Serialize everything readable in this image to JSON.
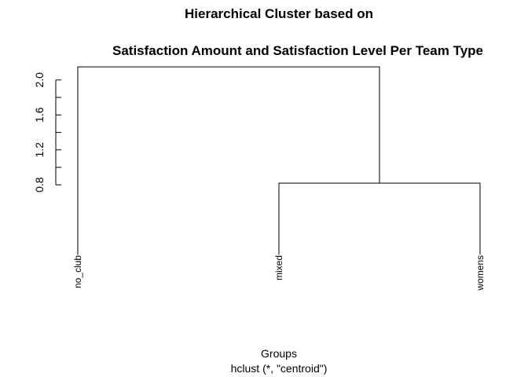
{
  "chart_data": {
    "type": "dendrogram",
    "title_line1": "Hierarchical Cluster based on",
    "title_line2": "Satisfaction Amount and Satisfaction Level Per Team Type",
    "xlabel": "Groups",
    "sublabel": "hclust (*, \"centroid\")",
    "ylim": [
      -0.15,
      2.16
    ],
    "yticks": [
      0.8,
      1.2,
      1.6,
      2.0
    ],
    "ytick_labels": [
      "0.8",
      "1.2",
      "1.6",
      "2.0"
    ],
    "leaves": [
      "no_club",
      "mixed",
      "womens"
    ],
    "merges": [
      {
        "left": "mixed",
        "right": "womens",
        "height": 0.82
      },
      {
        "left": "no_club",
        "right": "cluster-1",
        "height": 2.15
      }
    ],
    "leaf_base": 0.0
  }
}
